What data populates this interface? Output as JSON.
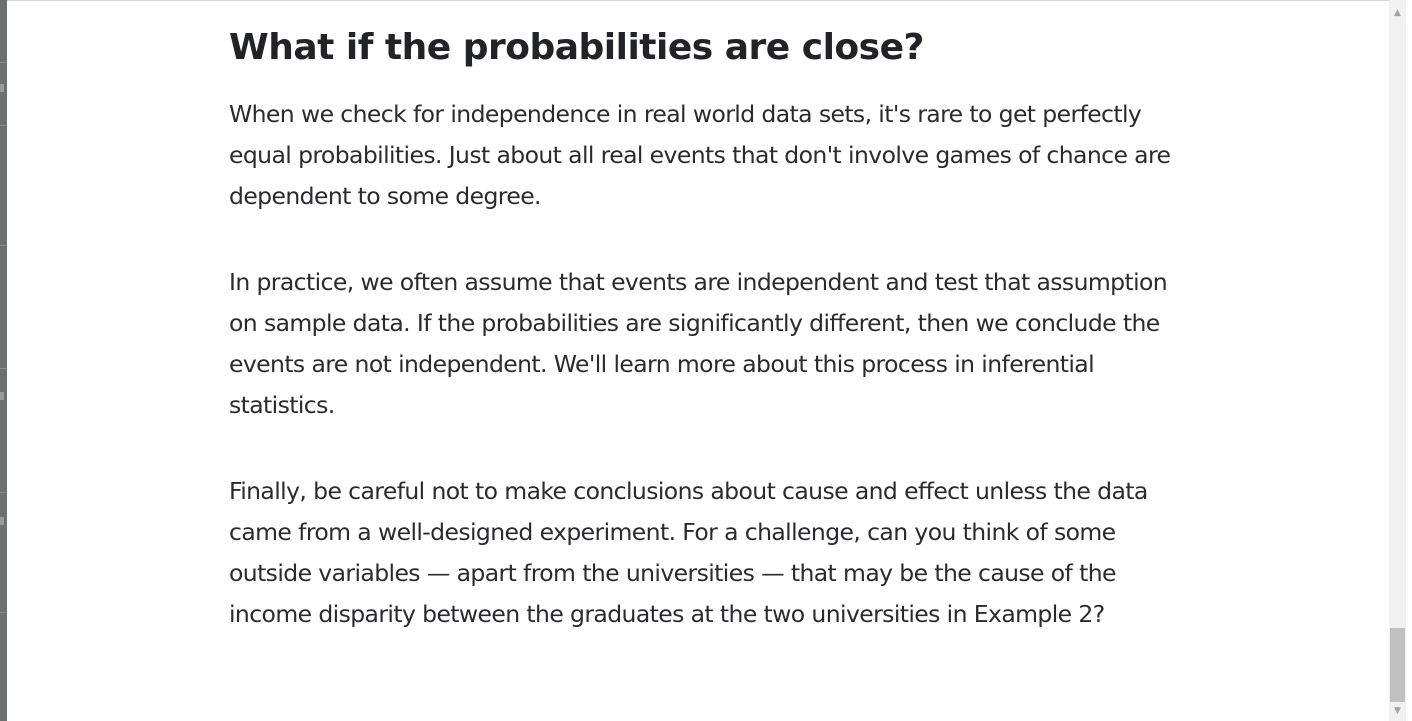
{
  "article": {
    "heading": "What if the probabilities are close?",
    "paragraphs": [
      "When we check for independence in real world data sets, it's rare to get perfectly equal probabilities. Just about all real events that don't involve games of chance are dependent to some degree.",
      "In practice, we often assume that events are independent and test that assumption on sample data. If the probabilities are significantly different, then we conclude the events are not independent. We'll learn more about this process in inferential statistics.",
      "Finally, be careful not to make conclusions about cause and effect unless the data came from a well-designed experiment. For a challenge, can you think of some outside variables — apart from the universities — that may be the cause of the income disparity between the graduates at the two universities in Example 2?"
    ]
  },
  "scrollbar": {
    "up_icon": "chevron-up-icon",
    "down_icon": "chevron-down-icon",
    "up_glyph": "▲",
    "down_glyph": "▼"
  },
  "colors": {
    "text": "#2a2b2f",
    "heading": "#222326",
    "backdrop": "#6e6f71",
    "scroll_track": "#f1f1f1",
    "scroll_thumb": "#c1c1c1"
  }
}
